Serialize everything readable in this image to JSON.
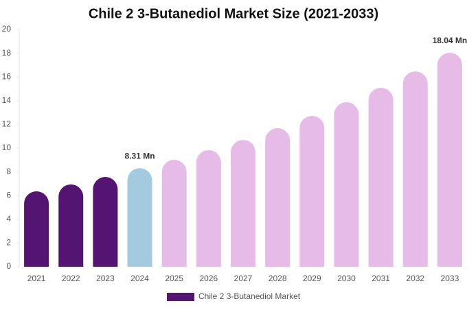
{
  "chart_data": {
    "type": "bar",
    "title": "Chile 2 3-Butanediol Market Size (2021-2033)",
    "categories": [
      "2021",
      "2022",
      "2023",
      "2024",
      "2025",
      "2026",
      "2027",
      "2028",
      "2029",
      "2030",
      "2031",
      "2032",
      "2033"
    ],
    "series": [
      {
        "name": "Chile 2 3-Butanediol Market",
        "color": "#541472",
        "values": [
          6.36,
          6.94,
          7.57,
          8.31,
          9.02,
          9.83,
          10.69,
          11.68,
          12.72,
          13.87,
          15.09,
          16.47,
          18.04
        ],
        "value_labels": [
          null,
          null,
          null,
          "8.31 Mn",
          null,
          null,
          null,
          null,
          null,
          null,
          null,
          null,
          "18.04 Mn"
        ],
        "colors": [
          "#541472",
          "#541472",
          "#541472",
          "#a3cadf",
          "#e6bbe8",
          "#e6bbe8",
          "#e6bbe8",
          "#e6bbe8",
          "#e6bbe8",
          "#e6bbe8",
          "#e6bbe8",
          "#e6bbe8",
          "#e6bbe8"
        ]
      }
    ],
    "ylim": [
      0,
      20
    ],
    "yticks": [
      0,
      2,
      4,
      6,
      8,
      10,
      12,
      14,
      16,
      18,
      20
    ],
    "legend": "bottom"
  }
}
